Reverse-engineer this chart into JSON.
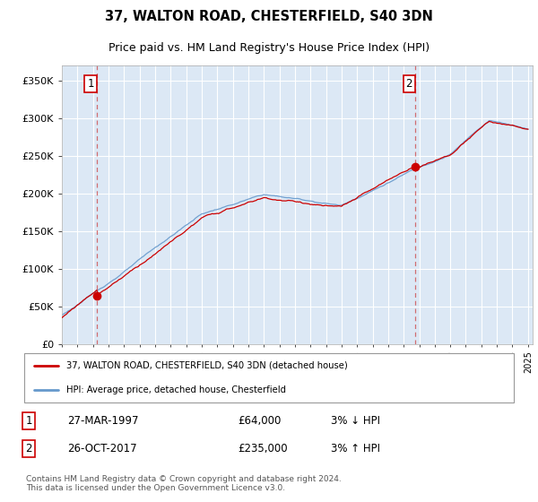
{
  "title": "37, WALTON ROAD, CHESTERFIELD, S40 3DN",
  "subtitle": "Price paid vs. HM Land Registry's House Price Index (HPI)",
  "ylim": [
    0,
    370000
  ],
  "yticks": [
    0,
    50000,
    100000,
    150000,
    200000,
    250000,
    300000,
    350000
  ],
  "ytick_labels": [
    "£0",
    "£50K",
    "£100K",
    "£150K",
    "£200K",
    "£250K",
    "£300K",
    "£350K"
  ],
  "plot_bg_color": "#dce8f5",
  "line_color_red": "#cc0000",
  "line_color_blue": "#6699cc",
  "marker_color": "#cc0000",
  "grid_color": "#ffffff",
  "sale1_year": 1997.21,
  "sale1_price": 64000,
  "sale2_year": 2017.79,
  "sale2_price": 235000,
  "legend_label_red": "37, WALTON ROAD, CHESTERFIELD, S40 3DN (detached house)",
  "legend_label_blue": "HPI: Average price, detached house, Chesterfield",
  "footer": "Contains HM Land Registry data © Crown copyright and database right 2024.\nThis data is licensed under the Open Government Licence v3.0."
}
